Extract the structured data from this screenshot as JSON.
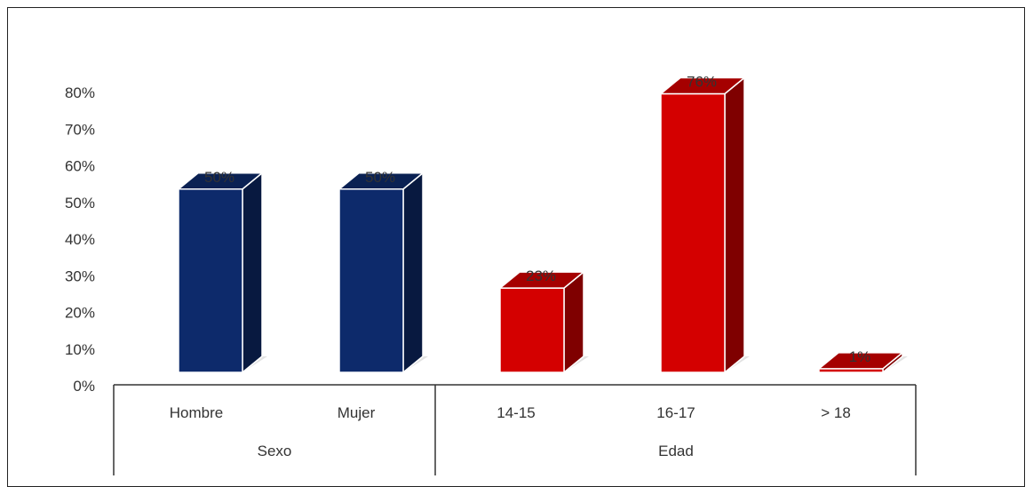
{
  "chart_data": {
    "type": "bar",
    "style": "3d-column",
    "categories": [
      "Hombre",
      "Mujer",
      "14-15",
      "16-17",
      "> 18"
    ],
    "groups": [
      {
        "label": "Sexo",
        "categories": [
          "Hombre",
          "Mujer"
        ],
        "color": "#0d2a6b"
      },
      {
        "label": "Edad",
        "categories": [
          "14-15",
          "16-17",
          "> 18"
        ],
        "color": "#d40000"
      }
    ],
    "values": [
      50,
      50,
      23,
      76,
      1
    ],
    "data_labels": [
      "50%",
      "50%",
      "23%",
      "76%",
      "1%"
    ],
    "bar_colors": [
      "#0d2a6b",
      "#0d2a6b",
      "#d40000",
      "#d40000",
      "#d40000"
    ],
    "ylim": [
      0,
      80
    ],
    "yticks": [
      "0%",
      "10%",
      "20%",
      "30%",
      "40%",
      "50%",
      "60%",
      "70%",
      "80%"
    ],
    "grid": false,
    "legend": "none"
  }
}
